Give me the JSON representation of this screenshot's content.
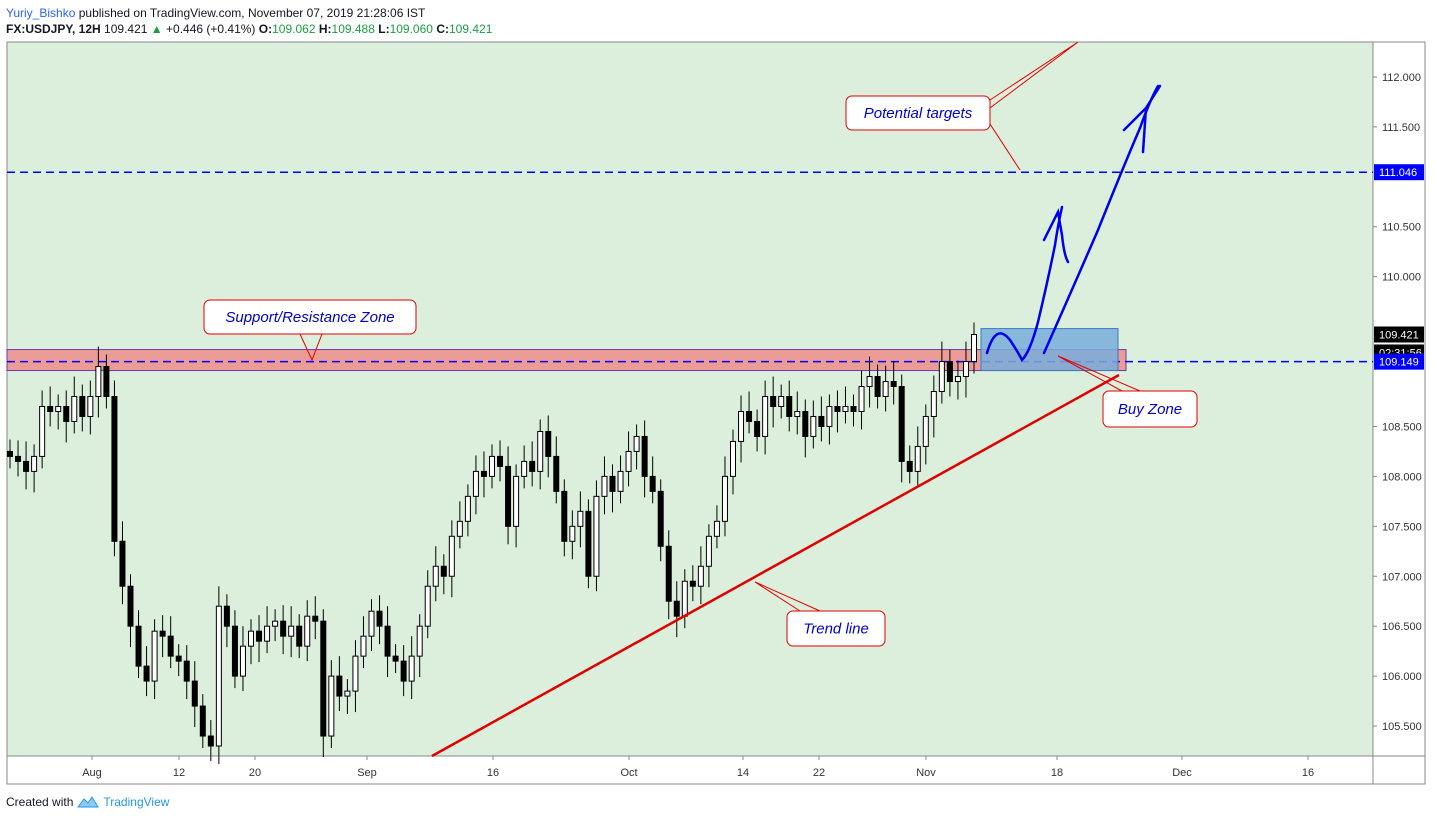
{
  "header": {
    "author": "Yuriy_Bishko",
    "published": "published on TradingView.com, November 07, 2019 21:28:06 IST",
    "symbol": "FX:USDJPY, 12H",
    "last": "109.421",
    "up_arrow": "▲",
    "change": "+0.446 (+0.41%)",
    "o_label": "O:",
    "o": "109.062",
    "h_label": "H:",
    "h": "109.488",
    "l_label": "L:",
    "l": "109.060",
    "c_label": "C:",
    "c": "109.421"
  },
  "footer": {
    "created": "Created with",
    "brand": "TradingView"
  },
  "colors": {
    "background": "#dcefdc",
    "bull": "#ffffff",
    "bear": "#000000",
    "level": "#0000ff",
    "trend": "#e00000",
    "callout_border": "#e00000",
    "callout_text": "#0000cc",
    "zone_fill": "#f08080",
    "buy_zone": "#78aedc",
    "price_tag": "#0000ff"
  },
  "chart_data": {
    "type": "candlestick",
    "interval": "12H",
    "ylim": [
      105.2,
      112.35
    ],
    "y_ticks": [
      "112.000",
      "111.500",
      "111.046",
      "110.500",
      "110.000",
      "109.421",
      "109.149",
      "108.500",
      "108.000",
      "107.500",
      "107.000",
      "106.500",
      "106.000",
      "105.500"
    ],
    "x_ticks": [
      "Aug",
      "12",
      "20",
      "Sep",
      "16",
      "Oct",
      "14",
      "22",
      "Nov",
      "18",
      "Dec",
      "16"
    ],
    "last_price_label": "109.421",
    "countdown_label": "02:31:56",
    "levels": {
      "support_resistance": 109.149,
      "target": 111.046
    },
    "annotations": [
      "Potential targets",
      "Support/Resistance Zone",
      "Buy Zone",
      "Trend line"
    ],
    "closes": [
      108.2,
      108.15,
      108.05,
      108.2,
      108.7,
      108.65,
      108.7,
      108.55,
      108.8,
      108.6,
      108.8,
      109.1,
      108.8,
      107.35,
      106.9,
      106.5,
      106.1,
      105.95,
      106.45,
      106.4,
      106.2,
      106.15,
      105.95,
      105.7,
      105.4,
      105.3,
      106.7,
      106.5,
      106.0,
      106.3,
      106.45,
      106.35,
      106.5,
      106.55,
      106.4,
      106.5,
      106.3,
      106.6,
      106.55,
      105.4,
      106.0,
      105.8,
      105.85,
      106.2,
      106.4,
      106.65,
      106.5,
      106.2,
      106.15,
      105.95,
      106.2,
      106.5,
      106.9,
      107.1,
      107.0,
      107.4,
      107.55,
      107.8,
      108.05,
      108.0,
      108.2,
      108.1,
      107.5,
      108.0,
      108.15,
      108.05,
      108.45,
      108.2,
      107.85,
      107.35,
      107.5,
      107.65,
      107.0,
      107.8,
      108.0,
      107.85,
      108.05,
      108.25,
      108.4,
      108.0,
      107.85,
      107.3,
      106.75,
      106.6,
      106.95,
      106.9,
      107.1,
      107.4,
      107.55,
      108.0,
      108.35,
      108.65,
      108.55,
      108.4,
      108.8,
      108.7,
      108.8,
      108.6,
      108.65,
      108.4,
      108.6,
      108.5,
      108.7,
      108.65,
      108.7,
      108.65,
      108.9,
      109.0,
      108.8,
      108.95,
      108.9,
      108.15,
      108.05,
      108.3,
      108.6,
      108.85,
      109.15,
      108.95,
      109.0,
      109.15,
      109.421
    ]
  }
}
